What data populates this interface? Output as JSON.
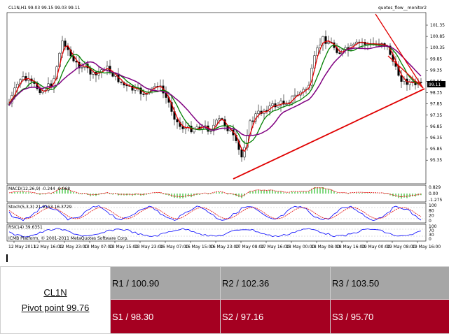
{
  "chart": {
    "title": "CL1N,H1  99.03 99.15 99.03 99.11",
    "indicator_label": "quotes_flow__monitor2",
    "price_axis": [
      "101.35",
      "100.85",
      "100.35",
      "99.85",
      "99.35",
      "98.85",
      "98.35",
      "97.85",
      "97.35",
      "96.85",
      "96.35",
      "95.85",
      "95.35"
    ],
    "current_price": "99.11",
    "macd_label": "MACD(12,26,9) -0.244 -0.068",
    "macd_axis": [
      "0.829",
      "0.00",
      "-1.275"
    ],
    "stoch_label": "Stoch(5,3,3) 21.9153 16.3729",
    "stoch_axis": [
      "100",
      "80",
      "20",
      "0"
    ],
    "rsi_label": "RSI(14) 39.6351",
    "rsi_axis": [
      "100",
      "70",
      "30",
      "0"
    ],
    "copyright": "ICMB Platform, © 2001-2011 MetaQuotes Software Corp.",
    "time_axis": [
      "12 May 2011",
      "12 May 16:00",
      "12 May 23:00",
      "13 May 07:00",
      "13 May 15:00",
      "13 May 23:00",
      "16 May 07:00",
      "16 May 15:00",
      "16 May 23:00",
      "17 May 08:00",
      "17 May 16:00",
      "18 May 00:00",
      "18 May 08:00",
      "18 May 16:00",
      "19 May 00:00",
      "19 May 08:00",
      "19 May 16:00"
    ],
    "colors": {
      "candle": "#000000",
      "ma_fast": "#e00000",
      "ma_mid": "#008000",
      "ma_slow": "#800080",
      "trendline": "#e00000",
      "macd_hist": "#00b000",
      "stoch_main": "#0000ff",
      "stoch_signal": "#e00000",
      "rsi": "#0000ff"
    }
  },
  "table": {
    "symbol": "CL1N",
    "pivot": "Pivot point 99.76",
    "r1": "R1 / 100.90",
    "r2": "R2  / 102.36",
    "r3": "R3 / 103.50",
    "s1": "S1 / 98.30",
    "s2": "S2 /  97.16",
    "s3": "S3 /  95.70"
  }
}
